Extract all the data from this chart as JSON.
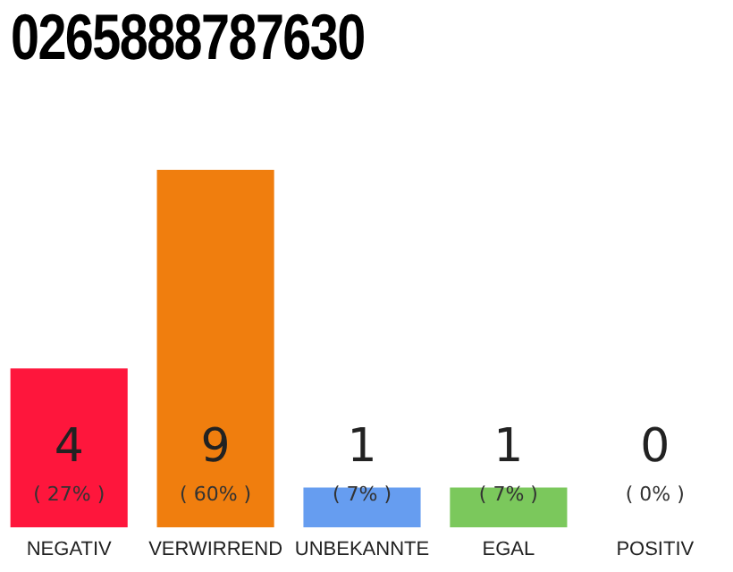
{
  "chart_data": {
    "type": "bar",
    "title": "0265888787630",
    "categories": [
      "NEGATIV",
      "VERWIRREND",
      "UNBEKANNTE",
      "EGAL",
      "POSITIV"
    ],
    "values": [
      4,
      9,
      1,
      1,
      0
    ],
    "colors": [
      "#fe163c",
      "#f07e0e",
      "#669df0",
      "#7bc85c",
      "#2aa24e"
    ],
    "ylim": [
      0,
      9
    ],
    "tick_labels": "x",
    "data_labels": true,
    "annotations": [
      "( 27% )",
      "( 60% )",
      "( 7% )",
      "( 7% )",
      "( 0% )"
    ]
  }
}
